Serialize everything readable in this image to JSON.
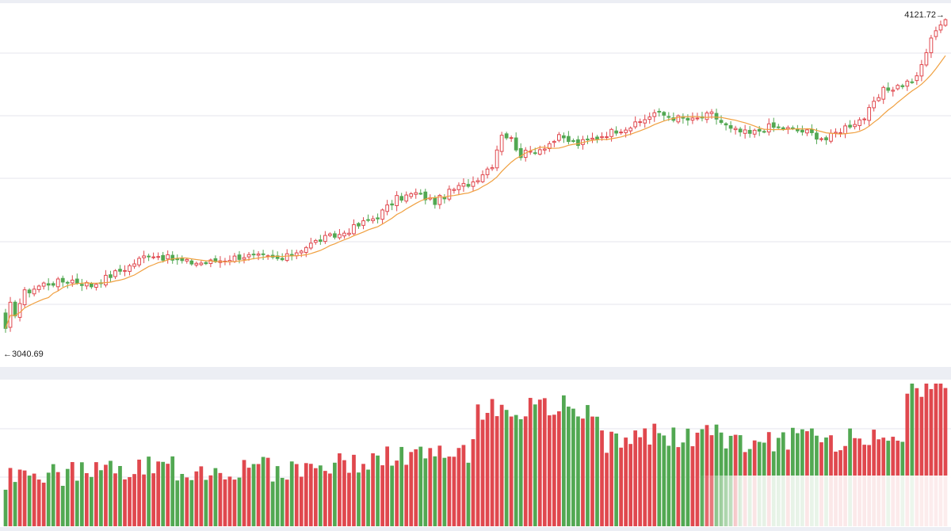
{
  "colors": {
    "up": "#e0484e",
    "down": "#52a852",
    "ma_line": "#f0a040",
    "grid": "#e6e6ec",
    "separator_band": "#eceef4"
  },
  "chart_data": [
    {
      "type": "candlestick",
      "moving_average_shown": true,
      "ylim": [
        2980,
        4140
      ],
      "grid": true,
      "annotations": {
        "high_label": "4121.72→",
        "low_label": "←3040.69"
      }
    },
    {
      "type": "bar",
      "grid": true,
      "bar_colors_follow_candles": true
    }
  ]
}
